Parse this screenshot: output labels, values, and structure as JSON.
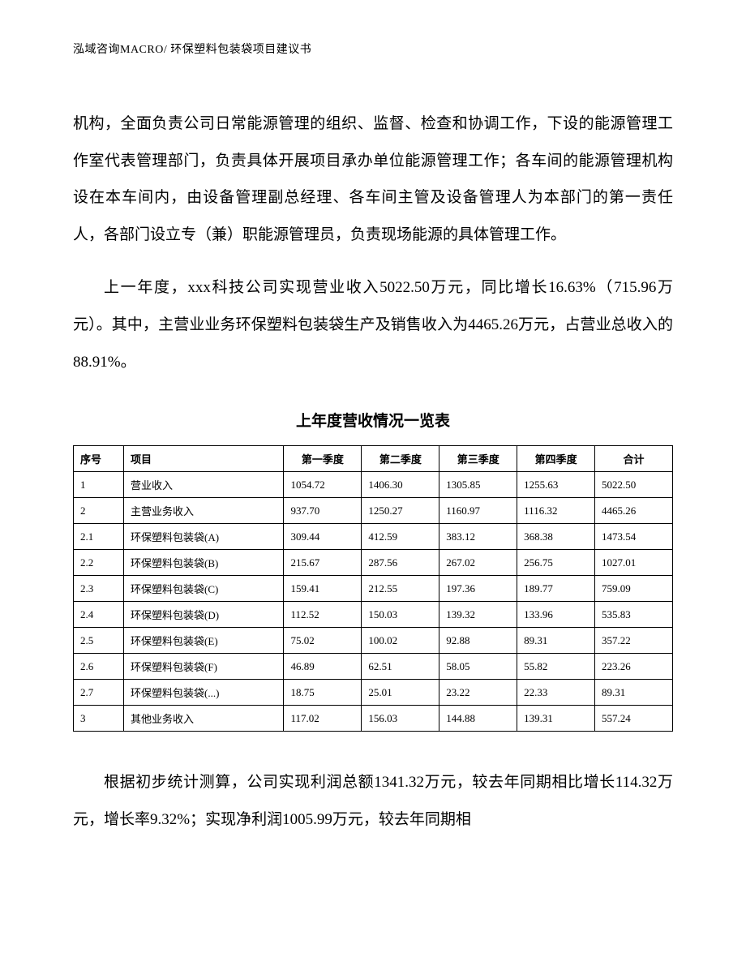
{
  "header": {
    "text": "泓域咨询MACRO/    环保塑料包装袋项目建议书"
  },
  "paragraphs": {
    "p1": "机构，全面负责公司日常能源管理的组织、监督、检查和协调工作，下设的能源管理工作室代表管理部门，负责具体开展项目承办单位能源管理工作；各车间的能源管理机构设在本车间内，由设备管理副总经理、各车间主管及设备管理人为本部门的第一责任人，各部门设立专（兼）职能源管理员，负责现场能源的具体管理工作。",
    "p2": "上一年度，xxx科技公司实现营业收入5022.50万元，同比增长16.63%（715.96万元）。其中，主营业业务环保塑料包装袋生产及销售收入为4465.26万元，占营业总收入的88.91%。",
    "p3": "根据初步统计测算，公司实现利润总额1341.32万元，较去年同期相比增长114.32万元，增长率9.32%；实现净利润1005.99万元，较去年同期相"
  },
  "table": {
    "title": "上年度营收情况一览表",
    "columns": [
      "序号",
      "项目",
      "第一季度",
      "第二季度",
      "第三季度",
      "第四季度",
      "合计"
    ],
    "rows": [
      [
        "1",
        "营业收入",
        "1054.72",
        "1406.30",
        "1305.85",
        "1255.63",
        "5022.50"
      ],
      [
        "2",
        "主营业务收入",
        "937.70",
        "1250.27",
        "1160.97",
        "1116.32",
        "4465.26"
      ],
      [
        "2.1",
        "环保塑料包装袋(A)",
        "309.44",
        "412.59",
        "383.12",
        "368.38",
        "1473.54"
      ],
      [
        "2.2",
        "环保塑料包装袋(B)",
        "215.67",
        "287.56",
        "267.02",
        "256.75",
        "1027.01"
      ],
      [
        "2.3",
        "环保塑料包装袋(C)",
        "159.41",
        "212.55",
        "197.36",
        "189.77",
        "759.09"
      ],
      [
        "2.4",
        "环保塑料包装袋(D)",
        "112.52",
        "150.03",
        "139.32",
        "133.96",
        "535.83"
      ],
      [
        "2.5",
        "环保塑料包装袋(E)",
        "75.02",
        "100.02",
        "92.88",
        "89.31",
        "357.22"
      ],
      [
        "2.6",
        "环保塑料包装袋(F)",
        "46.89",
        "62.51",
        "58.05",
        "55.82",
        "223.26"
      ],
      [
        "2.7",
        "环保塑料包装袋(...)",
        "18.75",
        "25.01",
        "23.22",
        "22.33",
        "89.31"
      ],
      [
        "3",
        "其他业务收入",
        "117.02",
        "156.03",
        "144.88",
        "139.31",
        "557.24"
      ]
    ]
  },
  "styling": {
    "body_font_size": 19,
    "header_font_size": 14,
    "table_font_size": 13,
    "line_height": 2.4,
    "border_color": "#000000",
    "background_color": "#ffffff",
    "text_color": "#000000"
  }
}
